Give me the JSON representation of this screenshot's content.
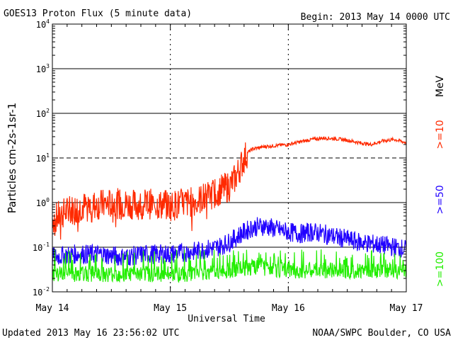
{
  "header": {
    "title": "GOES13 Proton Flux (5 minute data)",
    "begin": "Begin: 2013 May 14 0000 UTC"
  },
  "footer": {
    "updated": "Updated 2013 May 16 23:56:02 UTC",
    "source": "NOAA/SWPC Boulder, CO USA"
  },
  "chart_data": {
    "type": "line",
    "title": "GOES13 Proton Flux (5 minute data)",
    "xlabel": "Universal Time",
    "ylabel": "Particles cm-2s-1sr-1",
    "y_scale": "log",
    "ylim": [
      0.01,
      10000
    ],
    "xlim_days": [
      0,
      3
    ],
    "x_tick_labels": [
      "May 14",
      "May 15",
      "May 16",
      "May 17"
    ],
    "y_tick_labels": [
      {
        "base": "10",
        "exp": "-2"
      },
      {
        "base": "10",
        "exp": "-1"
      },
      {
        "base": "10",
        "exp": "0"
      },
      {
        "base": "10",
        "exp": "1"
      },
      {
        "base": "10",
        "exp": "2"
      },
      {
        "base": "10",
        "exp": "3"
      },
      {
        "base": "10",
        "exp": "4"
      }
    ],
    "energy_unit": "MeV",
    "series": [
      {
        "name": ">=10",
        "color": "#ff2a00",
        "points": [
          [
            0.0,
            0.4
          ],
          [
            0.1,
            0.6
          ],
          [
            0.2,
            0.75
          ],
          [
            0.3,
            0.85
          ],
          [
            0.4,
            0.9
          ],
          [
            0.5,
            0.95
          ],
          [
            0.6,
            0.95
          ],
          [
            0.7,
            0.9
          ],
          [
            0.8,
            0.95
          ],
          [
            0.9,
            0.9
          ],
          [
            1.0,
            0.85
          ],
          [
            1.1,
            0.95
          ],
          [
            1.2,
            1.05
          ],
          [
            1.3,
            1.3
          ],
          [
            1.4,
            1.8
          ],
          [
            1.5,
            2.3
          ],
          [
            1.55,
            3.5
          ],
          [
            1.6,
            7.0
          ],
          [
            1.65,
            13.0
          ],
          [
            1.7,
            16.0
          ],
          [
            1.8,
            18.0
          ],
          [
            1.9,
            19.0
          ],
          [
            2.0,
            20.0
          ],
          [
            2.1,
            23.0
          ],
          [
            2.2,
            26.0
          ],
          [
            2.3,
            28.0
          ],
          [
            2.4,
            27.0
          ],
          [
            2.5,
            25.0
          ],
          [
            2.6,
            22.0
          ],
          [
            2.7,
            20.0
          ],
          [
            2.8,
            24.0
          ],
          [
            2.9,
            26.0
          ],
          [
            3.0,
            22.0
          ]
        ]
      },
      {
        "name": ">=50",
        "color": "#2000ff",
        "points": [
          [
            0.0,
            0.06
          ],
          [
            0.2,
            0.07
          ],
          [
            0.4,
            0.07
          ],
          [
            0.6,
            0.06
          ],
          [
            0.8,
            0.07
          ],
          [
            1.0,
            0.07
          ],
          [
            1.2,
            0.08
          ],
          [
            1.4,
            0.1
          ],
          [
            1.5,
            0.13
          ],
          [
            1.6,
            0.2
          ],
          [
            1.7,
            0.28
          ],
          [
            1.8,
            0.3
          ],
          [
            1.9,
            0.25
          ],
          [
            2.0,
            0.22
          ],
          [
            2.1,
            0.2
          ],
          [
            2.2,
            0.22
          ],
          [
            2.3,
            0.2
          ],
          [
            2.4,
            0.17
          ],
          [
            2.5,
            0.15
          ],
          [
            2.6,
            0.13
          ],
          [
            2.7,
            0.12
          ],
          [
            2.8,
            0.11
          ],
          [
            2.9,
            0.1
          ],
          [
            3.0,
            0.09
          ]
        ]
      },
      {
        "name": ">=100",
        "color": "#22ee00",
        "points": [
          [
            0.0,
            0.025
          ],
          [
            0.3,
            0.025
          ],
          [
            0.6,
            0.025
          ],
          [
            0.9,
            0.025
          ],
          [
            1.2,
            0.025
          ],
          [
            1.5,
            0.03
          ],
          [
            1.7,
            0.035
          ],
          [
            2.0,
            0.03
          ],
          [
            2.3,
            0.03
          ],
          [
            2.6,
            0.03
          ],
          [
            3.0,
            0.03
          ]
        ]
      }
    ]
  }
}
